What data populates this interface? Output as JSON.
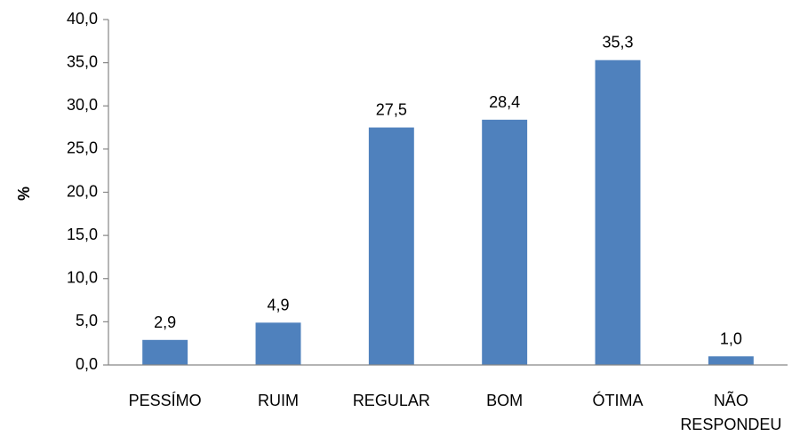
{
  "chart_data": {
    "type": "bar",
    "categories": [
      [
        "PESSÍMO"
      ],
      [
        "RUIM"
      ],
      [
        "REGULAR"
      ],
      [
        "BOM"
      ],
      [
        "ÓTIMA"
      ],
      [
        "NÃO",
        "RESPONDEU"
      ]
    ],
    "values": [
      2.9,
      4.9,
      27.5,
      28.4,
      35.3,
      1.0
    ],
    "data_labels": [
      "2,9",
      "4,9",
      "27,5",
      "28,4",
      "35,3",
      "1,0"
    ],
    "yticks": [
      0,
      5,
      10,
      15,
      20,
      25,
      30,
      35,
      40
    ],
    "ytick_labels": [
      "0,0",
      "5,0",
      "10,0",
      "15,0",
      "20,0",
      "25,0",
      "30,0",
      "35,0",
      "40,0"
    ],
    "ylim": [
      0,
      40
    ],
    "ylabel": "%",
    "xlabel": "",
    "title": "",
    "grid": false,
    "bar_color": "#4f81bd",
    "axis_color": "#868686"
  }
}
